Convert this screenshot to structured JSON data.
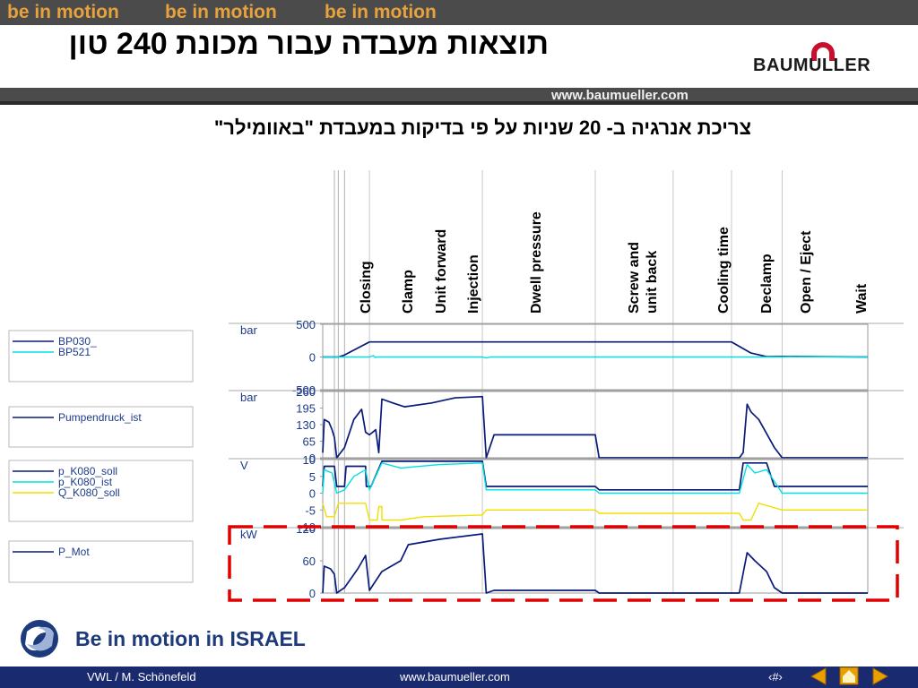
{
  "header": {
    "motion_banner": [
      "be in motion",
      "be in motion",
      "be in motion"
    ],
    "title": "תוצאות מעבדה עבור מכונת 240 טון",
    "brand": "BAUMULLER",
    "url": "www.baumueller.com"
  },
  "subtitle": "צריכת אנרגיה ב- 20 שניות על פי בדיקות במעבדת \"באוומילר\"",
  "tagline": "Be in motion in ISRAEL",
  "footer": {
    "author": "VWL / M. Schönefeld",
    "url": "www.baumueller.com",
    "page": "‹#›"
  },
  "colors": {
    "navy": "#0a1a7a",
    "cyan": "#00e0e0",
    "yellow": "#f0e000",
    "highlight": "#e00000",
    "footer": "#1a2a6e"
  },
  "chart_data": {
    "type": "line",
    "phases": [
      "Closing",
      "Clamp",
      "Unit forward",
      "Injection",
      "Dwell pressure",
      "Screw and unit back",
      "Cooling time",
      "Declamp",
      "Open / Eject",
      "Wait"
    ],
    "phase_boundaries": [
      0,
      0.15,
      0.2,
      0.28,
      0.6,
      2.05,
      3.5,
      4.5,
      5.25,
      5.9,
      7.0
    ],
    "x_range": [
      0,
      7.0
    ],
    "panels": [
      {
        "unit": "bar",
        "ylim": [
          -500,
          500
        ],
        "ticks": [
          "500",
          "0",
          "-500"
        ],
        "tick_values": [
          500,
          0,
          -500
        ],
        "legend": [
          "BP030_",
          "BP521"
        ],
        "series": [
          {
            "name": "BP030_",
            "color": "navy",
            "points": [
              [
                0,
                0
              ],
              [
                0.2,
                0
              ],
              [
                0.28,
                30
              ],
              [
                0.6,
                230
              ],
              [
                5.25,
                230
              ],
              [
                5.5,
                60
              ],
              [
                5.7,
                5
              ],
              [
                6.0,
                10
              ],
              [
                7.0,
                0
              ]
            ]
          },
          {
            "name": "BP521",
            "color": "cyan",
            "points": [
              [
                0,
                0
              ],
              [
                0.6,
                0
              ],
              [
                0.65,
                20
              ],
              [
                0.67,
                -5
              ],
              [
                0.7,
                0
              ],
              [
                2.05,
                0
              ],
              [
                2.1,
                -15
              ],
              [
                2.15,
                0
              ],
              [
                5.9,
                0
              ],
              [
                6.0,
                5
              ],
              [
                7.0,
                0
              ]
            ]
          }
        ]
      },
      {
        "unit": "bar",
        "ylim": [
          0,
          260
        ],
        "ticks": [
          "260",
          "195",
          "130",
          "65",
          "0"
        ],
        "tick_values": [
          260,
          195,
          130,
          65,
          0
        ],
        "legend": [
          "Pumpendruck_ist"
        ],
        "series": [
          {
            "name": "Pumpendruck_ist",
            "color": "navy",
            "points": [
              [
                0,
                20
              ],
              [
                0.02,
                150
              ],
              [
                0.08,
                140
              ],
              [
                0.12,
                110
              ],
              [
                0.15,
                80
              ],
              [
                0.18,
                0
              ],
              [
                0.28,
                40
              ],
              [
                0.4,
                150
              ],
              [
                0.5,
                190
              ],
              [
                0.55,
                100
              ],
              [
                0.6,
                90
              ],
              [
                0.68,
                110
              ],
              [
                0.72,
                20
              ],
              [
                0.76,
                230
              ],
              [
                0.9,
                215
              ],
              [
                1.05,
                200
              ],
              [
                1.4,
                215
              ],
              [
                1.7,
                235
              ],
              [
                2.05,
                240
              ],
              [
                2.1,
                0
              ],
              [
                2.2,
                90
              ],
              [
                3.5,
                90
              ],
              [
                3.55,
                0
              ],
              [
                5.35,
                0
              ],
              [
                5.4,
                20
              ],
              [
                5.45,
                210
              ],
              [
                5.5,
                180
              ],
              [
                5.6,
                150
              ],
              [
                5.8,
                40
              ],
              [
                5.9,
                0
              ],
              [
                7.0,
                0
              ]
            ]
          }
        ]
      },
      {
        "unit": "V",
        "ylim": [
          -10,
          10
        ],
        "ticks": [
          "10",
          "5",
          "0",
          "-5",
          "-10"
        ],
        "tick_values": [
          10,
          5,
          0,
          -5,
          -10
        ],
        "legend": [
          "p_K080_soll",
          "p_K080_ist",
          "Q_K080_soll"
        ],
        "series": [
          {
            "name": "p_K080_soll",
            "color": "navy",
            "points": [
              [
                0,
                2
              ],
              [
                0.02,
                8
              ],
              [
                0.15,
                8
              ],
              [
                0.18,
                2
              ],
              [
                0.28,
                2
              ],
              [
                0.3,
                8
              ],
              [
                0.55,
                8
              ],
              [
                0.56,
                2
              ],
              [
                0.6,
                2
              ],
              [
                0.62,
                2
              ],
              [
                0.76,
                9.5
              ],
              [
                2.05,
                9.5
              ],
              [
                2.1,
                2
              ],
              [
                3.5,
                2
              ],
              [
                3.55,
                1
              ],
              [
                5.35,
                1
              ],
              [
                5.4,
                9
              ],
              [
                5.7,
                9
              ],
              [
                5.8,
                2
              ],
              [
                7.0,
                2
              ]
            ]
          },
          {
            "name": "p_K080_ist",
            "color": "cyan",
            "points": [
              [
                0,
                0
              ],
              [
                0.02,
                7
              ],
              [
                0.12,
                6
              ],
              [
                0.18,
                0
              ],
              [
                0.28,
                1
              ],
              [
                0.4,
                5
              ],
              [
                0.55,
                7
              ],
              [
                0.6,
                1
              ],
              [
                0.76,
                9
              ],
              [
                1.0,
                7.5
              ],
              [
                1.5,
                8.5
              ],
              [
                2.05,
                9
              ],
              [
                2.1,
                1
              ],
              [
                3.5,
                1
              ],
              [
                3.55,
                0
              ],
              [
                5.35,
                0
              ],
              [
                5.45,
                8.5
              ],
              [
                5.55,
                6
              ],
              [
                5.7,
                7
              ],
              [
                5.9,
                0
              ],
              [
                7.0,
                0
              ]
            ]
          },
          {
            "name": "Q_K080_soll",
            "color": "yellow",
            "points": [
              [
                0,
                -3
              ],
              [
                0.05,
                -7
              ],
              [
                0.15,
                -7
              ],
              [
                0.2,
                -3
              ],
              [
                0.55,
                -3
              ],
              [
                0.6,
                -8
              ],
              [
                0.7,
                -8
              ],
              [
                0.72,
                -4
              ],
              [
                0.76,
                -4
              ],
              [
                0.76,
                -8
              ],
              [
                1.0,
                -8
              ],
              [
                1.3,
                -7
              ],
              [
                2.05,
                -6.5
              ],
              [
                2.1,
                -5
              ],
              [
                3.5,
                -5
              ],
              [
                3.55,
                -6
              ],
              [
                5.35,
                -6
              ],
              [
                5.4,
                -8
              ],
              [
                5.5,
                -8
              ],
              [
                5.6,
                -3
              ],
              [
                5.9,
                -5
              ],
              [
                7.0,
                -5
              ]
            ]
          }
        ]
      },
      {
        "unit": "kW",
        "ylim": [
          0,
          120
        ],
        "ticks": [
          "120",
          "60",
          "0"
        ],
        "tick_values": [
          120,
          60,
          0
        ],
        "legend": [
          "P_Mot"
        ],
        "series": [
          {
            "name": "P_Mot",
            "color": "navy",
            "points": [
              [
                0,
                0
              ],
              [
                0.02,
                50
              ],
              [
                0.1,
                45
              ],
              [
                0.15,
                35
              ],
              [
                0.18,
                0
              ],
              [
                0.28,
                10
              ],
              [
                0.45,
                45
              ],
              [
                0.55,
                70
              ],
              [
                0.6,
                5
              ],
              [
                0.76,
                40
              ],
              [
                1.0,
                60
              ],
              [
                1.1,
                90
              ],
              [
                1.5,
                100
              ],
              [
                2.05,
                110
              ],
              [
                2.1,
                0
              ],
              [
                2.2,
                5
              ],
              [
                3.5,
                5
              ],
              [
                3.55,
                0
              ],
              [
                5.35,
                0
              ],
              [
                5.45,
                75
              ],
              [
                5.55,
                60
              ],
              [
                5.7,
                40
              ],
              [
                5.8,
                10
              ],
              [
                5.9,
                0
              ],
              [
                7.0,
                0
              ]
            ]
          }
        ]
      }
    ]
  }
}
